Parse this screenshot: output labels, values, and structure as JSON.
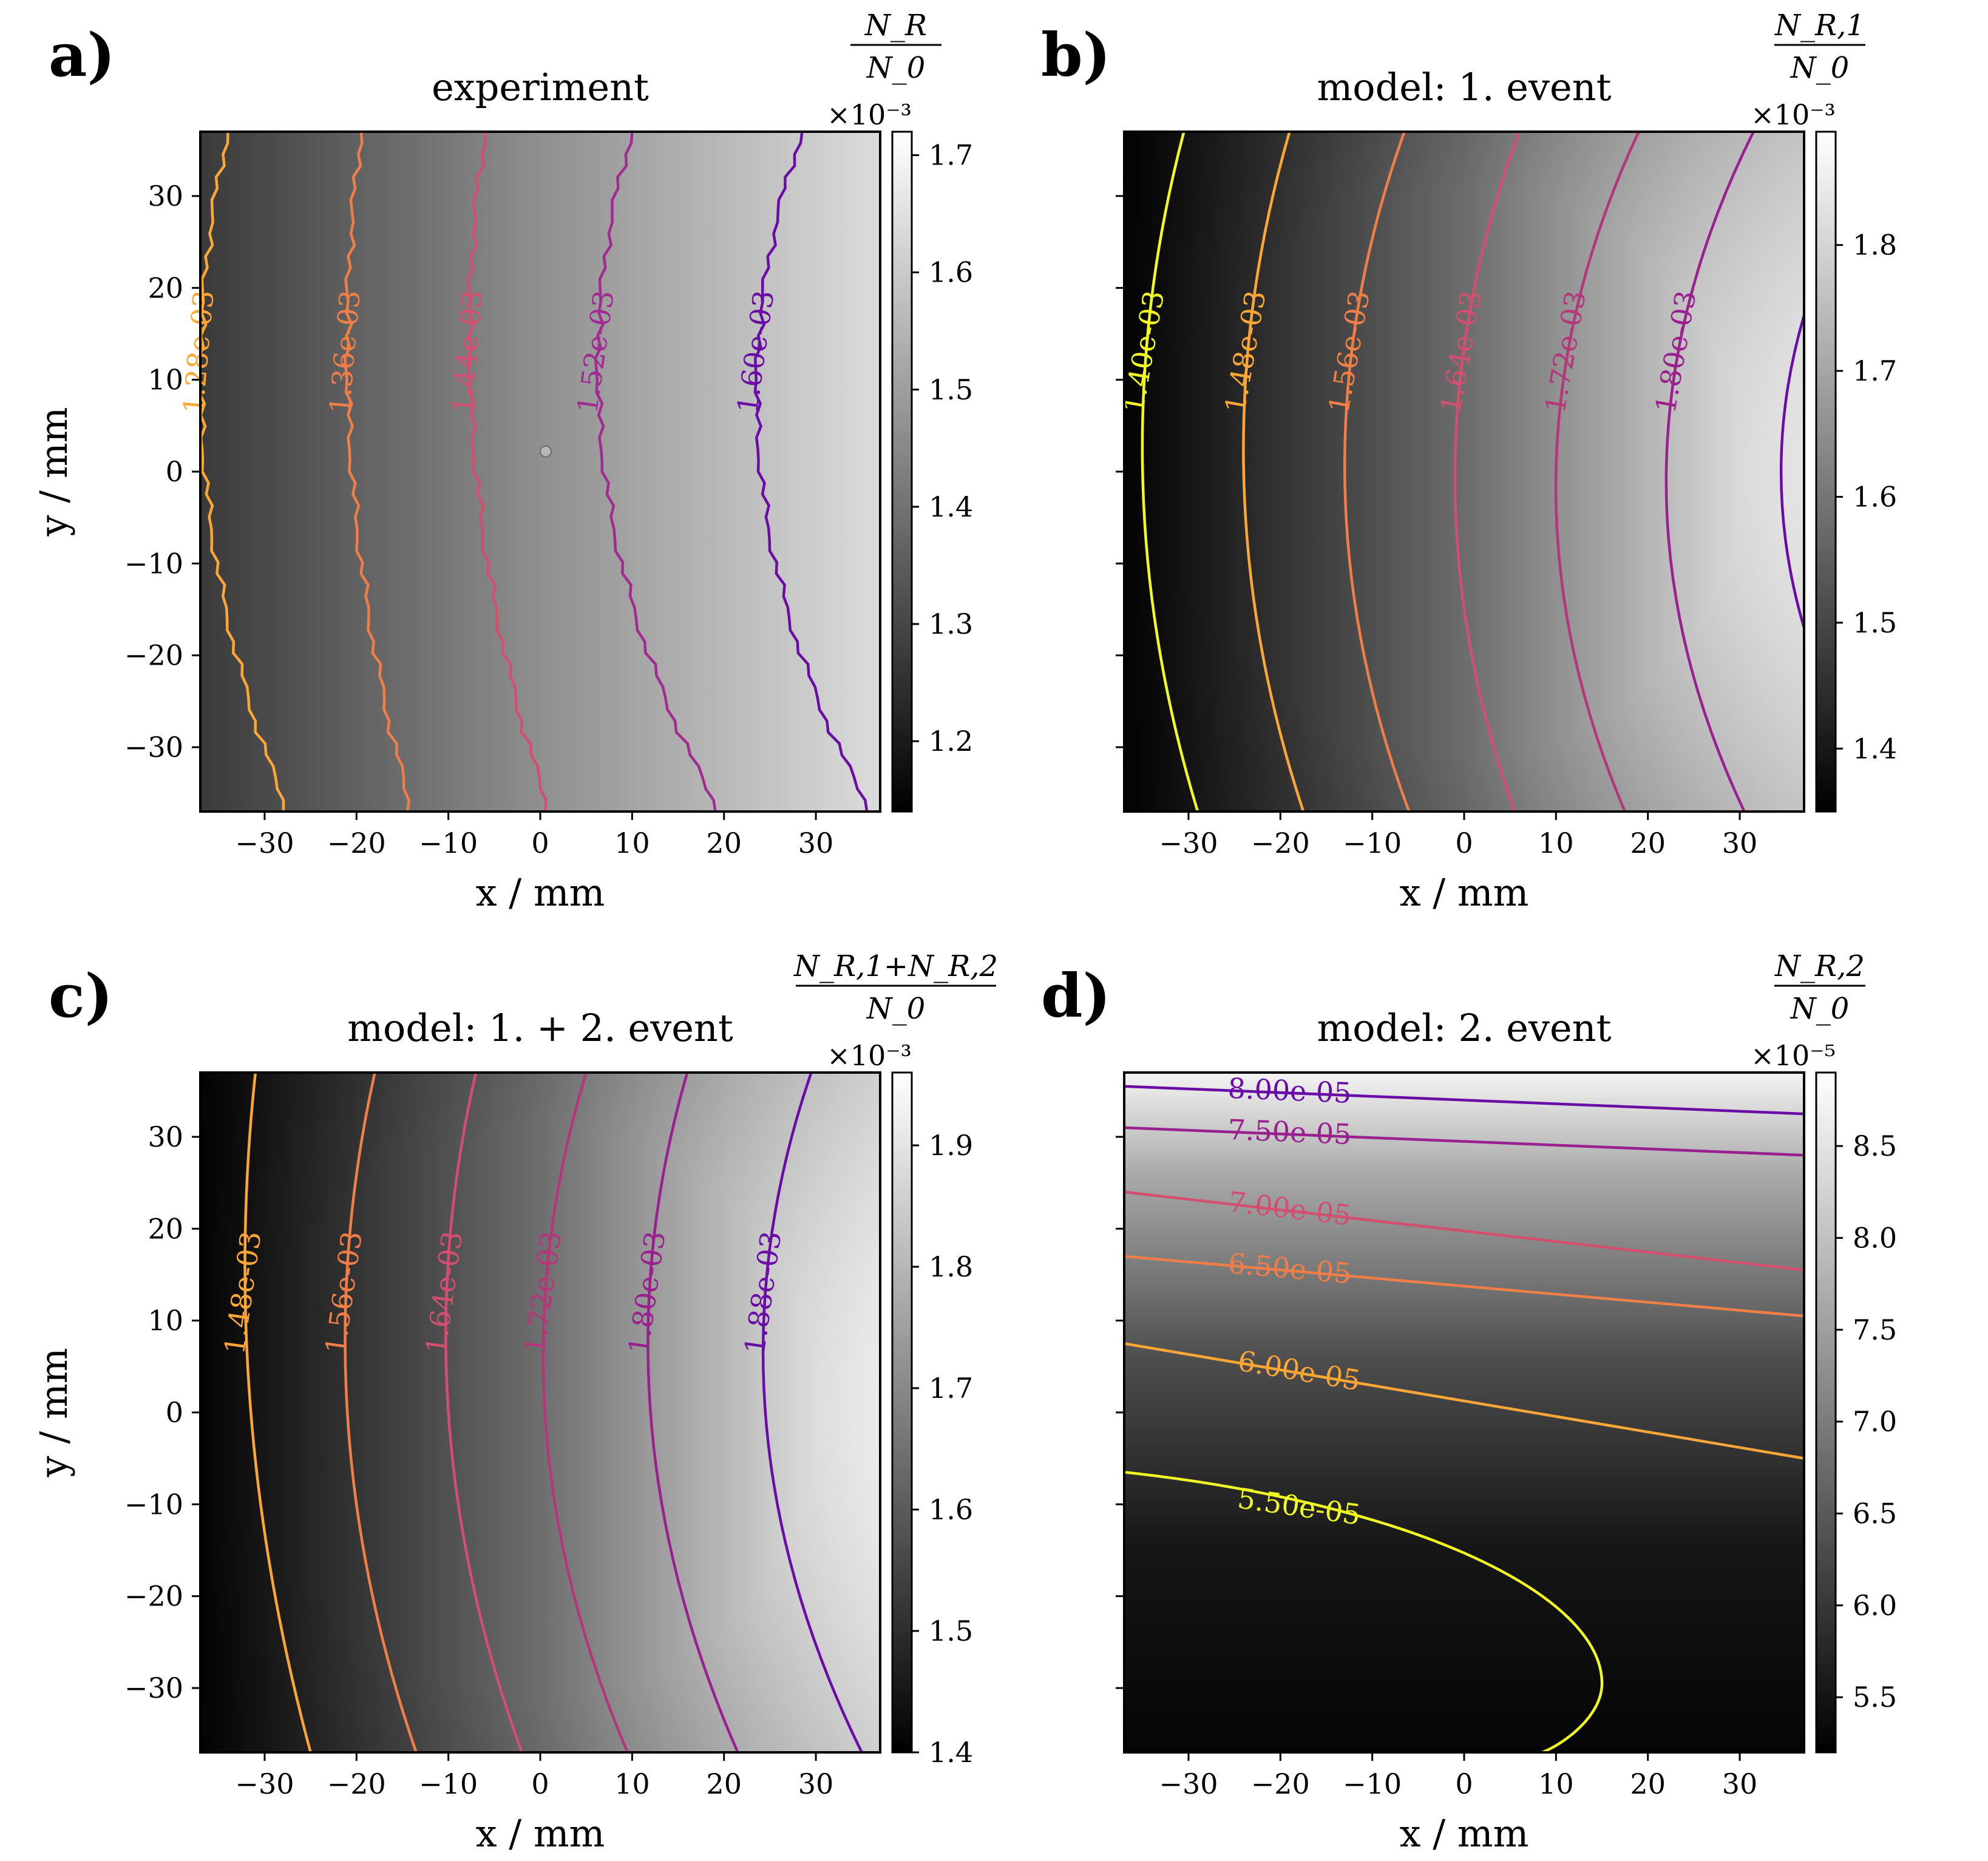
{
  "figure": {
    "x_unit_label": "x / mm",
    "y_unit_label": "y / mm"
  },
  "chart_data": [
    {
      "type": "heatmap",
      "panel_label": "a)",
      "title": "experiment",
      "xlabel": "x / mm",
      "ylabel": "y / mm",
      "xlim": [
        -37,
        37
      ],
      "ylim": [
        -37,
        37
      ],
      "xticks": [
        -30,
        -20,
        -10,
        0,
        10,
        20,
        30
      ],
      "yticks": [
        -30,
        -20,
        -10,
        0,
        10,
        20,
        30
      ],
      "show_x_ticklabels": true,
      "show_y_ticklabels": true,
      "colorbar": {
        "label_num": "N_R",
        "label_den": "N_0",
        "scale_label": "×10⁻³",
        "range": [
          1.14,
          1.72
        ],
        "ticks": [
          1.2,
          1.3,
          1.4,
          1.5,
          1.6,
          1.7
        ],
        "tick_labels": [
          "1.2",
          "1.3",
          "1.4",
          "1.5",
          "1.6",
          "1.7"
        ]
      },
      "contours": [
        {
          "label": "1.28e-03",
          "color": "#fca636",
          "top_x": -34,
          "mid_x": -36.5,
          "bottom_x": -27.5,
          "label_y": 13,
          "label_rot": -85
        },
        {
          "label": "1.36e-03",
          "color": "#ef7e47",
          "top_x": -19.5,
          "mid_x": -20.5,
          "bottom_x": -14,
          "label_y": 13,
          "label_rot": -85
        },
        {
          "label": "1.44e-03",
          "color": "#d24f71",
          "top_x": -6,
          "mid_x": -7,
          "bottom_x": 1,
          "label_y": 13,
          "label_rot": -85
        },
        {
          "label": "1.52e-03",
          "color": "#a32a92",
          "top_x": 10,
          "mid_x": 7,
          "bottom_x": 19.5,
          "label_y": 13,
          "label_rot": -82
        },
        {
          "label": "1.60e-03",
          "color": "#6a0ca6",
          "top_x": 28.5,
          "mid_x": 24,
          "bottom_x": 36,
          "label_y": 13,
          "label_rot": -82
        }
      ]
    },
    {
      "type": "heatmap",
      "panel_label": "b)",
      "title": "model: 1. event",
      "xlabel": "x / mm",
      "xlim": [
        -37,
        37
      ],
      "ylim": [
        -37,
        37
      ],
      "xticks": [
        -30,
        -20,
        -10,
        0,
        10,
        20,
        30
      ],
      "yticks": [
        -30,
        -20,
        -10,
        0,
        10,
        20,
        30
      ],
      "show_x_ticklabels": true,
      "show_y_ticklabels": false,
      "colorbar": {
        "label_num": "N_R,1",
        "label_den": "N_0",
        "scale_label": "×10⁻³",
        "range": [
          1.35,
          1.89
        ],
        "ticks": [
          1.4,
          1.5,
          1.6,
          1.7,
          1.8
        ],
        "tick_labels": [
          "1.4",
          "1.5",
          "1.6",
          "1.7",
          "1.8"
        ]
      },
      "contours": [
        {
          "label": "1.40e-03",
          "color": "#f0f921",
          "top_x": -30.5,
          "mid_x": -35,
          "bottom_x": -29,
          "label_y": 13,
          "label_rot": -80
        },
        {
          "label": "1.48e-03",
          "color": "#fca636",
          "top_x": -19,
          "mid_x": -24,
          "bottom_x": -17.5,
          "label_y": 13,
          "label_rot": -80
        },
        {
          "label": "1.56e-03",
          "color": "#ef7e47",
          "top_x": -6.5,
          "mid_x": -13,
          "bottom_x": -6,
          "label_y": 13,
          "label_rot": -80
        },
        {
          "label": "1.64e-03",
          "color": "#d24f71",
          "top_x": 6,
          "mid_x": -1,
          "bottom_x": 5.5,
          "label_y": 13,
          "label_rot": -80
        },
        {
          "label": "1.72e-03",
          "color": "#b5367a",
          "top_x": 19,
          "mid_x": 10,
          "bottom_x": 17.5,
          "label_y": 13,
          "label_rot": -80
        },
        {
          "label": "1.80e-03",
          "color": "#9a1f8f",
          "top_x": 31.5,
          "mid_x": 22,
          "bottom_x": 30.5,
          "label_y": 13,
          "label_rot": -80
        },
        {
          "label": "",
          "color": "#6a0ca6",
          "top_x": 37,
          "mid_x": 34.5,
          "bottom_x": 37,
          "top_y": 17,
          "bottom_y": -17
        }
      ]
    },
    {
      "type": "heatmap",
      "panel_label": "c)",
      "title": "model: 1. + 2. event",
      "xlabel": "x / mm",
      "ylabel": "y / mm",
      "xlim": [
        -37,
        37
      ],
      "ylim": [
        -37,
        37
      ],
      "xticks": [
        -30,
        -20,
        -10,
        0,
        10,
        20,
        30
      ],
      "yticks": [
        -30,
        -20,
        -10,
        0,
        10,
        20,
        30
      ],
      "show_x_ticklabels": true,
      "show_y_ticklabels": true,
      "colorbar": {
        "label_num": "N_R,1+N_R,2",
        "label_den": "N_0",
        "scale_label": "×10⁻³",
        "range": [
          1.4,
          1.96
        ],
        "ticks": [
          1.4,
          1.5,
          1.6,
          1.7,
          1.8,
          1.9
        ],
        "tick_labels": [
          "1.4",
          "1.5",
          "1.6",
          "1.7",
          "1.8",
          "1.9"
        ]
      },
      "contours": [
        {
          "label": "1.48e-03",
          "color": "#fca636",
          "top_x": -31,
          "mid_x": -31.5,
          "bottom_x": -25,
          "label_y": 13,
          "label_rot": -82
        },
        {
          "label": "1.56e-03",
          "color": "#ef7e47",
          "top_x": -18,
          "mid_x": -21,
          "bottom_x": -13.5,
          "label_y": 13,
          "label_rot": -82
        },
        {
          "label": "1.64e-03",
          "color": "#d24f71",
          "top_x": -7,
          "mid_x": -10,
          "bottom_x": -2,
          "label_y": 13,
          "label_rot": -82
        },
        {
          "label": "1.72e-03",
          "color": "#b5367a",
          "top_x": 5,
          "mid_x": 0.5,
          "bottom_x": 9.5,
          "label_y": 13,
          "label_rot": -82
        },
        {
          "label": "1.80e-03",
          "color": "#9a1f8f",
          "top_x": 16,
          "mid_x": 12,
          "bottom_x": 21.5,
          "label_y": 13,
          "label_rot": -82
        },
        {
          "label": "1.88e-03",
          "color": "#6a0ca6",
          "top_x": 29.5,
          "mid_x": 24.5,
          "bottom_x": 35,
          "label_y": 13,
          "label_rot": -82
        }
      ]
    },
    {
      "type": "heatmap",
      "panel_label": "d)",
      "title": "model: 2. event",
      "xlabel": "x / mm",
      "xlim": [
        -37,
        37
      ],
      "ylim": [
        -37,
        37
      ],
      "xticks": [
        -30,
        -20,
        -10,
        0,
        10,
        20,
        30
      ],
      "yticks": [
        -30,
        -20,
        -10,
        0,
        10,
        20,
        30
      ],
      "show_x_ticklabels": true,
      "show_y_ticklabels": false,
      "colorbar": {
        "label_num": "N_R,2",
        "label_den": "N_0",
        "scale_label": "×10⁻⁵",
        "range": [
          5.2,
          8.9
        ],
        "ticks": [
          5.5,
          6.0,
          6.5,
          7.0,
          7.5,
          8.0,
          8.5
        ],
        "tick_labels": [
          "5.5",
          "6.0",
          "6.5",
          "7.0",
          "7.5",
          "8.0",
          "8.5"
        ]
      },
      "horizontal_contours": [
        {
          "label": "8.00e-05",
          "color": "#6a0ca6",
          "left_y": 35.5,
          "right_y": 32.5,
          "label_x": -19
        },
        {
          "label": "7.50e-05",
          "color": "#9a1f8f",
          "left_y": 31,
          "right_y": 28,
          "label_x": -19
        },
        {
          "label": "7.00e-05",
          "color": "#d24f71",
          "left_y": 24,
          "right_y": 15.5,
          "label_x": -19
        },
        {
          "label": "6.50e-05",
          "color": "#ef7e47",
          "left_y": 17,
          "right_y": 10.5,
          "label_x": -19
        },
        {
          "label": "6.00e-05",
          "color": "#fca636",
          "left_y": 7.5,
          "right_y": -5,
          "label_x": -18
        }
      ],
      "curved_contour": {
        "label": "5.50e-05",
        "color": "#f0f921",
        "start": [
          -37,
          -6.5
        ],
        "apex": [
          15,
          -29.5
        ],
        "end": [
          8.5,
          -37
        ],
        "label_x": -18
      }
    }
  ]
}
